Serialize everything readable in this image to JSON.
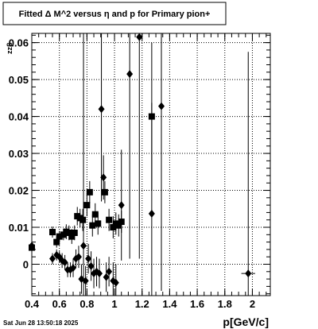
{
  "chart_data": {
    "type": "scatter",
    "title": "Fitted Δ M^2 versus η and p for Primary pion+",
    "xlabel": "p[GeV/c]",
    "ylabel": "zzβ",
    "xlim": [
      0.4,
      2.13
    ],
    "ylim": [
      -0.0085,
      0.0625
    ],
    "grid": true,
    "x_ticks": [
      "0.4",
      "0.6",
      "0.8",
      "1",
      "1.2",
      "1.4",
      "1.6",
      "1.8",
      "2"
    ],
    "y_ticks": [
      "0",
      "0.01",
      "0.02",
      "0.03",
      "0.04",
      "0.05",
      "0.06"
    ],
    "series": [
      {
        "marker": "square",
        "points": [
          {
            "x": 0.4,
            "y": 0.0045,
            "err": 0.001
          },
          {
            "x": 0.55,
            "y": 0.0087,
            "err": 0.0015
          },
          {
            "x": 0.58,
            "y": 0.006,
            "err": 0.0015
          },
          {
            "x": 0.6,
            "y": 0.0075,
            "err": 0.0015
          },
          {
            "x": 0.63,
            "y": 0.008,
            "err": 0.0015
          },
          {
            "x": 0.65,
            "y": 0.0088,
            "err": 0.002
          },
          {
            "x": 0.67,
            "y": 0.0085,
            "err": 0.002
          },
          {
            "x": 0.69,
            "y": 0.0075,
            "err": 0.002
          },
          {
            "x": 0.71,
            "y": 0.0085,
            "err": 0.002
          },
          {
            "x": 0.73,
            "y": 0.013,
            "err": 0.0025
          },
          {
            "x": 0.75,
            "y": 0.0125,
            "err": 0.0025
          },
          {
            "x": 0.77,
            "y": 0.012,
            "err": 0.003
          },
          {
            "x": 0.8,
            "y": 0.016,
            "err": 0.003
          },
          {
            "x": 0.82,
            "y": 0.0195,
            "err": 0.003
          },
          {
            "x": 0.84,
            "y": 0.0105,
            "err": 0.003
          },
          {
            "x": 0.86,
            "y": 0.0135,
            "err": 0.003
          },
          {
            "x": 0.88,
            "y": 0.011,
            "err": 0.003
          },
          {
            "x": 0.93,
            "y": 0.0195,
            "err": 0.003
          },
          {
            "x": 0.96,
            "y": 0.012,
            "err": 0.003
          },
          {
            "x": 0.99,
            "y": 0.01,
            "err": 0.003
          },
          {
            "x": 1.01,
            "y": 0.011,
            "err": 0.003
          },
          {
            "x": 1.03,
            "y": 0.0105,
            "err": 0.003
          },
          {
            "x": 1.05,
            "y": 0.0115,
            "err": 0.003
          },
          {
            "x": 1.27,
            "y": 0.04,
            "err": 0.02
          }
        ]
      },
      {
        "marker": "diamond",
        "points": [
          {
            "x": 0.4,
            "y": 0.005,
            "err": 0.001
          },
          {
            "x": 0.55,
            "y": 0.0015,
            "err": 0.0015
          },
          {
            "x": 0.58,
            "y": 0.0025,
            "err": 0.0015
          },
          {
            "x": 0.6,
            "y": 0.002,
            "err": 0.0015
          },
          {
            "x": 0.62,
            "y": 0.001,
            "err": 0.002
          },
          {
            "x": 0.64,
            "y": 0.0005,
            "err": 0.002
          },
          {
            "x": 0.66,
            "y": -0.0015,
            "err": 0.002
          },
          {
            "x": 0.68,
            "y": -0.0015,
            "err": 0.002
          },
          {
            "x": 0.7,
            "y": -0.001,
            "err": 0.0025
          },
          {
            "x": 0.72,
            "y": 0.0015,
            "err": 0.0025
          },
          {
            "x": 0.74,
            "y": 0.002,
            "err": 0.003
          },
          {
            "x": 0.76,
            "y": -0.004,
            "err": 0.004
          },
          {
            "x": 0.775,
            "y": 0.005,
            "err": 0.06
          },
          {
            "x": 0.79,
            "y": -0.0045,
            "err": 0.004
          },
          {
            "x": 0.81,
            "y": 0.0015,
            "err": 0.004
          },
          {
            "x": 0.83,
            "y": -0.0005,
            "err": 0.004
          },
          {
            "x": 0.85,
            "y": -0.0025,
            "err": 0.004
          },
          {
            "x": 0.87,
            "y": -0.002,
            "err": 0.004
          },
          {
            "x": 0.89,
            "y": -0.0025,
            "err": 0.004
          },
          {
            "x": 0.905,
            "y": 0.042,
            "err": 0.025
          },
          {
            "x": 0.92,
            "y": 0.0235,
            "err": 0.006
          },
          {
            "x": 0.94,
            "y": -0.0035,
            "err": 0.004
          },
          {
            "x": 0.96,
            "y": -0.002,
            "err": 0.004
          },
          {
            "x": 0.99,
            "y": -0.0045,
            "err": 0.005
          },
          {
            "x": 1.01,
            "y": -0.005,
            "err": 0.005
          },
          {
            "x": 1.05,
            "y": 0.016,
            "err": 0.015
          },
          {
            "x": 1.11,
            "y": 0.0515,
            "err": 0.05
          },
          {
            "x": 1.18,
            "y": 0.0615,
            "err": 0.06
          },
          {
            "x": 1.27,
            "y": 0.0137,
            "err": 0.03
          },
          {
            "x": 1.34,
            "y": 0.0428,
            "err": 0.05
          },
          {
            "x": 1.97,
            "y": -0.0025,
            "err": 0.06,
            "xerr": 0.05
          }
        ]
      }
    ]
  },
  "footer": {
    "timestamp": "Sat Jun 28 13:50:18 2025"
  }
}
